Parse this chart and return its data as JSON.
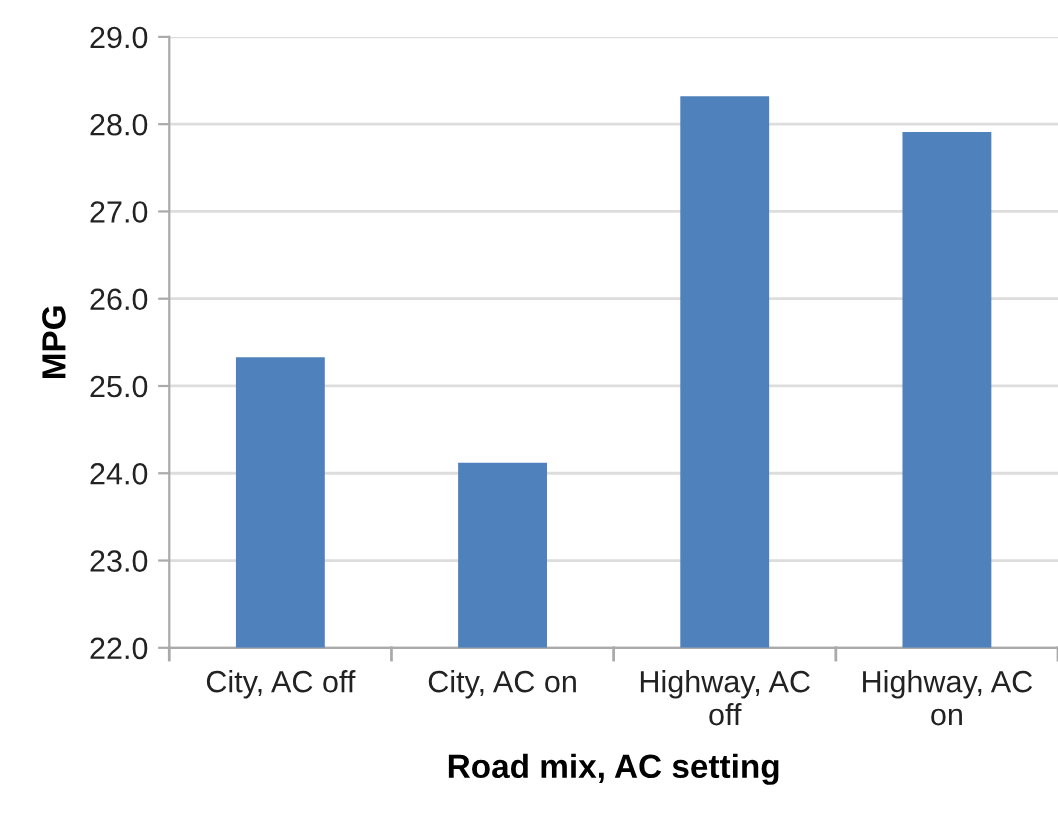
{
  "chart_data": {
    "type": "bar",
    "xlabel": "Road mix, AC setting",
    "ylabel": "MPG",
    "categories": [
      "City, AC off",
      "City, AC on",
      "Highway, AC\noff",
      "Highway, AC\non"
    ],
    "values": [
      25.33,
      24.12,
      28.32,
      27.91
    ],
    "color": "#4f81bd",
    "ylim": [
      22,
      29
    ],
    "yticks": [
      {
        "value": 22,
        "label": "22.0"
      },
      {
        "value": 23,
        "label": "23.0"
      },
      {
        "value": 24,
        "label": "24.0"
      },
      {
        "value": 25,
        "label": "25.0"
      },
      {
        "value": 26,
        "label": "26.0"
      },
      {
        "value": 27,
        "label": "27.0"
      },
      {
        "value": 28,
        "label": "28.0"
      },
      {
        "value": 29,
        "label": "29.0"
      }
    ],
    "grid": "y"
  }
}
